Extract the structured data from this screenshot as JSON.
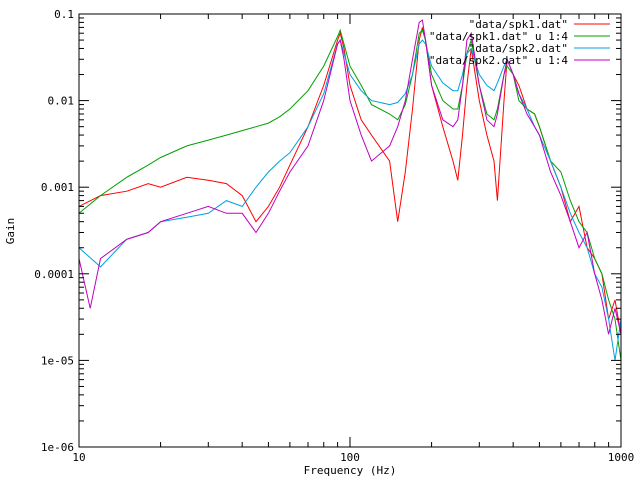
{
  "chart_data": {
    "type": "line",
    "xscale": "log",
    "yscale": "log",
    "xlim": [
      10,
      1000
    ],
    "ylim": [
      1e-06,
      0.1
    ],
    "xlabel": "Frequency (Hz)",
    "ylabel": "Gain",
    "grid": false,
    "legend_position": "top-right",
    "x_ticks": [
      {
        "value": 10,
        "label": "10"
      },
      {
        "value": 100,
        "label": "100"
      },
      {
        "value": 1000,
        "label": "1000"
      }
    ],
    "y_ticks": [
      {
        "value": 1e-06,
        "label": "1e-06"
      },
      {
        "value": 1e-05,
        "label": "1e-05"
      },
      {
        "value": 0.0001,
        "label": "0.0001"
      },
      {
        "value": 0.001,
        "label": "0.001"
      },
      {
        "value": 0.01,
        "label": "0.01"
      },
      {
        "value": 0.1,
        "label": "0.1"
      }
    ],
    "series": [
      {
        "name": "\"data/spk1.dat\"",
        "color": "#ff0000",
        "x": [
          10,
          12,
          15,
          18,
          20,
          25,
          30,
          35,
          40,
          45,
          50,
          55,
          60,
          70,
          80,
          90,
          92,
          95,
          100,
          110,
          120,
          140,
          150,
          160,
          170,
          180,
          185,
          190,
          200,
          220,
          240,
          250,
          260,
          270,
          280,
          300,
          320,
          340,
          350,
          370,
          380,
          400,
          420,
          450,
          480,
          500,
          550,
          600,
          650,
          700,
          750,
          800,
          850,
          900,
          950,
          1000
        ],
        "y": [
          0.0006,
          0.0008,
          0.0009,
          0.0011,
          0.001,
          0.0013,
          0.0012,
          0.0011,
          0.0008,
          0.0004,
          0.0006,
          0.001,
          0.0018,
          0.005,
          0.015,
          0.05,
          0.06,
          0.04,
          0.015,
          0.006,
          0.004,
          0.002,
          0.0004,
          0.0015,
          0.008,
          0.05,
          0.07,
          0.05,
          0.015,
          0.005,
          0.002,
          0.0012,
          0.004,
          0.015,
          0.04,
          0.01,
          0.004,
          0.002,
          0.0007,
          0.01,
          0.03,
          0.02,
          0.015,
          0.008,
          0.007,
          0.005,
          0.002,
          0.001,
          0.0004,
          0.0006,
          0.0002,
          0.00015,
          0.0001,
          3e-05,
          5e-05,
          2e-05
        ]
      },
      {
        "name": "\"data/spk1.dat\" u 1:4",
        "color": "#00a000",
        "x": [
          10,
          12,
          15,
          18,
          20,
          25,
          30,
          35,
          40,
          45,
          50,
          55,
          60,
          70,
          80,
          90,
          92,
          95,
          100,
          110,
          120,
          140,
          150,
          160,
          170,
          180,
          185,
          190,
          200,
          220,
          240,
          250,
          260,
          270,
          280,
          300,
          320,
          340,
          350,
          370,
          380,
          400,
          420,
          450,
          480,
          500,
          550,
          600,
          650,
          700,
          750,
          800,
          850,
          900,
          950,
          1000
        ],
        "y": [
          0.0005,
          0.0008,
          0.0013,
          0.0018,
          0.0022,
          0.003,
          0.0035,
          0.004,
          0.0045,
          0.005,
          0.0055,
          0.0065,
          0.008,
          0.013,
          0.025,
          0.055,
          0.065,
          0.045,
          0.025,
          0.015,
          0.009,
          0.007,
          0.006,
          0.009,
          0.02,
          0.06,
          0.065,
          0.05,
          0.02,
          0.01,
          0.008,
          0.008,
          0.015,
          0.035,
          0.05,
          0.015,
          0.007,
          0.006,
          0.008,
          0.02,
          0.025,
          0.02,
          0.01,
          0.008,
          0.007,
          0.005,
          0.002,
          0.0015,
          0.0007,
          0.0004,
          0.0003,
          0.00015,
          0.0001,
          5e-05,
          3e-05,
          1e-05
        ]
      },
      {
        "name": "\"data/spk2.dat\"",
        "color": "#00a0e0",
        "x": [
          10,
          12,
          15,
          18,
          20,
          25,
          30,
          35,
          40,
          45,
          50,
          55,
          60,
          70,
          80,
          90,
          92,
          95,
          100,
          110,
          120,
          140,
          150,
          160,
          170,
          180,
          185,
          190,
          200,
          220,
          240,
          250,
          260,
          270,
          280,
          300,
          320,
          340,
          350,
          370,
          380,
          400,
          420,
          450,
          480,
          500,
          550,
          600,
          650,
          700,
          750,
          800,
          850,
          900,
          950,
          1000
        ],
        "y": [
          0.0002,
          0.00012,
          0.00025,
          0.0003,
          0.0004,
          0.00045,
          0.0005,
          0.0007,
          0.0006,
          0.001,
          0.0015,
          0.002,
          0.0025,
          0.005,
          0.012,
          0.045,
          0.05,
          0.035,
          0.02,
          0.013,
          0.01,
          0.009,
          0.0095,
          0.012,
          0.02,
          0.045,
          0.05,
          0.045,
          0.025,
          0.016,
          0.013,
          0.013,
          0.02,
          0.035,
          0.04,
          0.02,
          0.015,
          0.013,
          0.016,
          0.025,
          0.03,
          0.02,
          0.012,
          0.008,
          0.005,
          0.004,
          0.002,
          0.001,
          0.0005,
          0.0003,
          0.0002,
          0.0001,
          7e-05,
          3e-05,
          1e-05,
          3e-05
        ]
      },
      {
        "name": "\"data/spk2.dat\" u 1:4",
        "color": "#c000c0",
        "x": [
          10,
          11,
          12,
          15,
          18,
          20,
          25,
          30,
          35,
          40,
          45,
          50,
          55,
          60,
          70,
          80,
          90,
          92,
          95,
          100,
          110,
          120,
          140,
          150,
          160,
          170,
          180,
          185,
          190,
          200,
          220,
          240,
          250,
          260,
          270,
          280,
          300,
          320,
          340,
          350,
          370,
          380,
          400,
          420,
          450,
          480,
          500,
          550,
          600,
          650,
          700,
          750,
          800,
          850,
          900,
          950,
          1000
        ],
        "y": [
          0.00015,
          4e-05,
          0.00015,
          0.00025,
          0.0003,
          0.0004,
          0.0005,
          0.0006,
          0.0005,
          0.0005,
          0.0003,
          0.0005,
          0.0009,
          0.0015,
          0.003,
          0.01,
          0.045,
          0.05,
          0.03,
          0.01,
          0.004,
          0.002,
          0.003,
          0.005,
          0.01,
          0.03,
          0.08,
          0.085,
          0.05,
          0.015,
          0.006,
          0.005,
          0.006,
          0.015,
          0.05,
          0.06,
          0.015,
          0.006,
          0.005,
          0.007,
          0.02,
          0.03,
          0.02,
          0.012,
          0.007,
          0.005,
          0.004,
          0.0015,
          0.0008,
          0.0004,
          0.0002,
          0.0003,
          0.0001,
          5e-05,
          2e-05,
          4e-05,
          2e-05
        ]
      }
    ]
  }
}
